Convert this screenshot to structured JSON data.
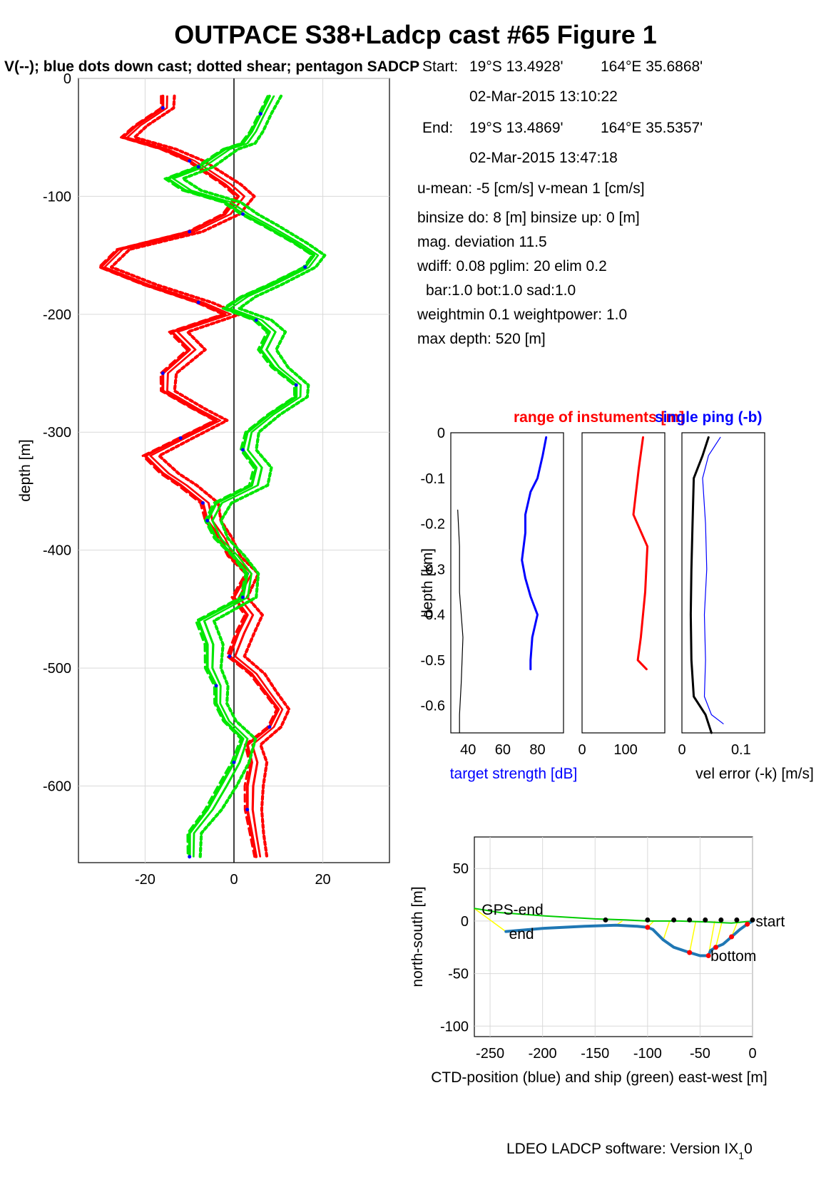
{
  "figure": {
    "title": "OUTPACE S38+Ladcp cast #65  Figure 1",
    "subtitle": "V(--); blue dots down cast; dotted shear; pentagon SADCP",
    "footer": "LDEO LADCP software: Version IX",
    "footer_sub": "1",
    "footer_tail": "0"
  },
  "info": {
    "start_label": "Start:",
    "start_lat": "19°S 13.4928'",
    "start_lon": "164°E 35.6868'",
    "start_time": "02-Mar-2015 13:10:22",
    "end_label": "End:",
    "end_lat": "19°S 13.4869'",
    "end_lon": "164°E 35.5357'",
    "end_time": "02-Mar-2015 13:47:18",
    "means": "u-mean:  -5 [cm/s]    v-mean   1 [cm/s]",
    "binsize": "binsize do: 8 [m]  binsize up:  0 [m]",
    "magdev": "mag. deviation 11.5",
    "params1": "wdiff: 0.08  pglim: 20  elim 0.2",
    "params2": "bar:1.0 bot:1.0 sad:1.0",
    "weights": "weightmin 0.1  weightpower: 1.0",
    "maxdepth": "max depth: 520 [m]"
  },
  "colors": {
    "u": "#ff0000",
    "v": "#00e600",
    "blue": "#0000ff",
    "ctd": "#1f77b4",
    "ship": "#00cc00",
    "link": "#ffff00"
  },
  "chart_data": [
    {
      "type": "line",
      "name": "velocity-profile",
      "ylabel": "depth [m]",
      "xlim": [
        -35,
        35
      ],
      "ylim": [
        -665,
        0
      ],
      "xticks": [
        -20,
        0,
        20
      ],
      "yticks": [
        0,
        -100,
        -200,
        -300,
        -400,
        -500,
        -600
      ],
      "grid": true,
      "series": [
        {
          "name": "u",
          "color": "#ff0000",
          "depth": [
            -15,
            -25,
            -40,
            -50,
            -60,
            -70,
            -90,
            -100,
            -115,
            -130,
            -145,
            -160,
            -175,
            -190,
            -200,
            -215,
            -230,
            -250,
            -265,
            -280,
            -290,
            -305,
            -320,
            -335,
            -345,
            -360,
            -375,
            -390,
            -405,
            -420,
            -440,
            -455,
            -470,
            -490,
            -505,
            -520,
            -535,
            -550,
            -565,
            -580,
            -600,
            -620,
            -640,
            -660
          ],
          "values": [
            -16,
            -16,
            -22,
            -25,
            -16,
            -10,
            -2,
            1,
            -2,
            -10,
            -26,
            -30,
            -20,
            -8,
            -2,
            -14,
            -10,
            -16,
            -16,
            -9,
            -4,
            -12,
            -20,
            -16,
            -12,
            -7,
            -6,
            -3,
            -1,
            3,
            0,
            3,
            1,
            -1,
            4,
            7,
            10,
            8,
            3,
            4,
            3,
            3,
            4,
            5
          ]
        },
        {
          "name": "v",
          "color": "#00e600",
          "depth": [
            -15,
            -30,
            -45,
            -55,
            -60,
            -75,
            -85,
            -95,
            -105,
            -115,
            -125,
            -140,
            -150,
            -160,
            -175,
            -185,
            -195,
            -205,
            -215,
            -230,
            -245,
            -260,
            -270,
            -285,
            -300,
            -315,
            -330,
            -345,
            -360,
            -375,
            -390,
            -405,
            -420,
            -440,
            -460,
            -480,
            -500,
            -515,
            -530,
            -545,
            -560,
            -580,
            -600,
            -620,
            -640,
            -660
          ],
          "values": [
            8,
            6,
            4,
            2,
            -2,
            -8,
            -15,
            -11,
            -2,
            2,
            7,
            14,
            18,
            16,
            8,
            2,
            -2,
            5,
            8,
            6,
            9,
            14,
            14,
            8,
            3,
            2,
            5,
            4,
            -4,
            -6,
            -4,
            0,
            3,
            2,
            -8,
            -6,
            -6,
            -4,
            -4,
            -2,
            2,
            0,
            -3,
            -6,
            -10,
            -10
          ]
        }
      ]
    },
    {
      "type": "line",
      "name": "target-strength",
      "title": "range of instuments [m]",
      "ylabel": "depth [km]",
      "xlabel": "target strength [dB]",
      "xticks": [
        40,
        60,
        80
      ],
      "ylim": [
        -0.66,
        0
      ],
      "yticks": [
        0,
        -0.1,
        -0.2,
        -0.3,
        -0.4,
        -0.5,
        -0.6
      ],
      "series": [
        {
          "name": "downlooker",
          "color": "#0000ff",
          "depth": [
            -0.01,
            -0.05,
            -0.1,
            -0.13,
            -0.18,
            -0.22,
            -0.28,
            -0.32,
            -0.36,
            -0.4,
            -0.45,
            -0.5,
            -0.52
          ],
          "values": [
            85,
            83,
            80,
            76,
            73,
            73,
            71,
            73,
            76,
            80,
            77,
            76,
            76
          ]
        },
        {
          "name": "noise",
          "color": "#000000",
          "depth": [
            -0.17,
            -0.25,
            -0.35,
            -0.45,
            -0.55,
            -0.62,
            -0.66
          ],
          "values": [
            34,
            35,
            35,
            37,
            36,
            35,
            35
          ]
        }
      ]
    },
    {
      "type": "line",
      "name": "range",
      "xticks": [
        0,
        100
      ],
      "series": [
        {
          "name": "range",
          "color": "#ff0000",
          "depth": [
            -0.01,
            -0.08,
            -0.18,
            -0.25,
            -0.35,
            -0.45,
            -0.5,
            -0.52
          ],
          "values": [
            140,
            130,
            118,
            150,
            145,
            135,
            128,
            148
          ]
        }
      ]
    },
    {
      "type": "line",
      "name": "vel-error",
      "title": "single ping (-b)",
      "xlabel": "vel error (-k) [m/s]",
      "xticks": [
        0,
        0.1
      ],
      "series": [
        {
          "name": "vel-error-k",
          "color": "#000000",
          "depth": [
            -0.01,
            -0.05,
            -0.1,
            -0.2,
            -0.3,
            -0.4,
            -0.5,
            -0.58,
            -0.62,
            -0.66
          ],
          "values": [
            0.045,
            0.035,
            0.02,
            0.018,
            0.016,
            0.015,
            0.016,
            0.02,
            0.04,
            0.05
          ]
        },
        {
          "name": "single-ping-b",
          "color": "#0000ff",
          "depth": [
            -0.01,
            -0.05,
            -0.1,
            -0.2,
            -0.3,
            -0.4,
            -0.5,
            -0.58,
            -0.62,
            -0.64
          ],
          "values": [
            0.065,
            0.045,
            0.035,
            0.04,
            0.042,
            0.038,
            0.04,
            0.038,
            0.05,
            0.07
          ]
        }
      ]
    },
    {
      "type": "line",
      "name": "position",
      "xlabel": "CTD-position (blue) and ship (green) east-west [m]",
      "ylabel": "north-south [m]",
      "xlim": [
        -265,
        0
      ],
      "ylim": [
        -110,
        80
      ],
      "xticks": [
        -250,
        -200,
        -150,
        -100,
        -50,
        0
      ],
      "yticks": [
        50,
        0,
        -50,
        -100
      ],
      "labels": [
        "GPS-end",
        "end",
        "start",
        "bottom"
      ],
      "series": [
        {
          "name": "CTD",
          "color": "#1f77b4",
          "x": [
            -235,
            -200,
            -160,
            -130,
            -110,
            -100,
            -95,
            -85,
            -75,
            -60,
            -50,
            -42,
            -40,
            -35,
            -28,
            -20,
            -12,
            -5,
            0
          ],
          "y": [
            -10,
            -7,
            -5,
            -4,
            -5,
            -6,
            -8,
            -18,
            -25,
            -30,
            -33,
            -33,
            -28,
            -25,
            -22,
            -15,
            -8,
            -3,
            0
          ]
        },
        {
          "name": "ship",
          "color": "#00cc00",
          "x": [
            -265,
            -240,
            -200,
            -150,
            -120,
            -100,
            -70,
            -40,
            -20,
            -10,
            0
          ],
          "y": [
            12,
            8,
            5,
            2,
            1,
            0,
            0,
            -1,
            -2,
            -1,
            0
          ]
        }
      ]
    }
  ]
}
